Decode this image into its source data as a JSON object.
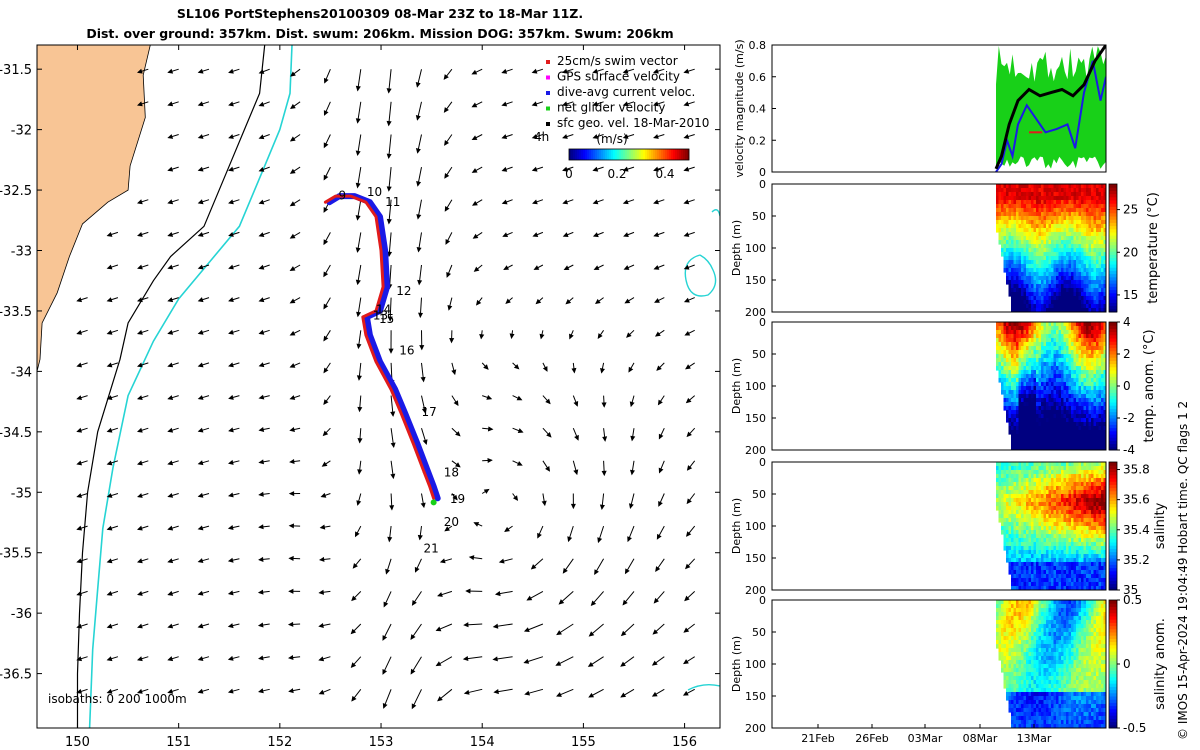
{
  "title": {
    "line1": "SL106 PortStephens20100309 08-Mar 23Z to 18-Mar 11Z.",
    "line2": "Dist. over ground: 357km. Dist. swum: 206km. Mission DOG: 357km. Swum: 206km"
  },
  "credit": "© IMOS 15-Apr-2024 19:04:49 Hobart time. QC flags 1  2",
  "colors": {
    "land": "#f8c595",
    "isobath200": "#000000",
    "isobath1000": "#26d4d4",
    "track_red": "#e11b1b",
    "track_blue": "#1a1ae6",
    "track_green": "#18d018",
    "glider_mag": "#000000"
  },
  "chart_data": [
    {
      "type": "map",
      "name": "map",
      "x_ticks": [
        150,
        151,
        152,
        153,
        154,
        155,
        156
      ],
      "y_ticks": [
        -31.5,
        -32,
        -32.5,
        -33,
        -33.5,
        -34,
        -34.5,
        -35,
        -35.5,
        -36,
        -36.5
      ],
      "xlim": [
        149.6,
        156.35
      ],
      "ylim": [
        -36.95,
        -31.3
      ],
      "legend": {
        "placement": "top-right",
        "entries": [
          "25cm/s swim vector",
          "GPS surface velocity",
          "dive-avg current veloc.",
          "net glider velocity",
          "sfc geo. vel. 18-Mar-2010"
        ],
        "extra_label": "4h"
      },
      "colorbar": {
        "label": "(m/s)",
        "ticks": [
          "0",
          "0.2",
          "0.4"
        ],
        "range": [
          0,
          0.5
        ]
      },
      "isobath_label": "isobaths: 0   200   1000m",
      "day_labels": [
        {
          "text": "9",
          "lon": 152.58,
          "lat": -32.58
        },
        {
          "text": "10",
          "lon": 152.86,
          "lat": -32.55
        },
        {
          "text": "11",
          "lon": 153.04,
          "lat": -32.63
        },
        {
          "text": "12",
          "lon": 153.15,
          "lat": -33.37
        },
        {
          "text": "14",
          "lon": 152.95,
          "lat": -33.52
        },
        {
          "text": "13",
          "lon": 152.92,
          "lat": -33.57
        },
        {
          "text": "15",
          "lon": 152.98,
          "lat": -33.6
        },
        {
          "text": "16",
          "lon": 153.18,
          "lat": -33.86
        },
        {
          "text": "17",
          "lon": 153.4,
          "lat": -34.37
        },
        {
          "text": "18",
          "lon": 153.62,
          "lat": -34.87
        },
        {
          "text": "19",
          "lon": 153.68,
          "lat": -35.09
        },
        {
          "text": "20",
          "lon": 153.62,
          "lat": -35.28
        },
        {
          "text": "21",
          "lon": 153.42,
          "lat": -35.5
        }
      ],
      "track": [
        [
          152.45,
          -32.6
        ],
        [
          152.55,
          -32.55
        ],
        [
          152.7,
          -32.55
        ],
        [
          152.85,
          -32.6
        ],
        [
          152.95,
          -32.72
        ],
        [
          153.0,
          -33.0
        ],
        [
          153.02,
          -33.3
        ],
        [
          152.95,
          -33.5
        ],
        [
          152.82,
          -33.55
        ],
        [
          152.85,
          -33.7
        ],
        [
          152.95,
          -33.92
        ],
        [
          153.1,
          -34.15
        ],
        [
          153.2,
          -34.35
        ],
        [
          153.32,
          -34.6
        ],
        [
          153.42,
          -34.82
        ],
        [
          153.48,
          -34.95
        ],
        [
          153.52,
          -35.05
        ]
      ],
      "coastline": [
        [
          150.27,
          -31.3
        ],
        [
          150.72,
          -31.3
        ],
        [
          150.65,
          -31.55
        ],
        [
          150.67,
          -31.9
        ],
        [
          150.52,
          -32.3
        ],
        [
          150.5,
          -32.5
        ],
        [
          150.3,
          -32.6
        ],
        [
          150.05,
          -32.78
        ],
        [
          149.92,
          -33.05
        ],
        [
          149.8,
          -33.35
        ],
        [
          149.65,
          -33.6
        ],
        [
          149.63,
          -33.9
        ],
        [
          149.6,
          -34.0
        ]
      ],
      "isobath200": [
        [
          151.85,
          -31.3
        ],
        [
          151.8,
          -31.7
        ],
        [
          151.65,
          -32.0
        ],
        [
          151.55,
          -32.2
        ],
        [
          151.25,
          -32.8
        ],
        [
          150.92,
          -33.05
        ],
        [
          150.75,
          -33.25
        ],
        [
          150.5,
          -33.6
        ],
        [
          150.42,
          -33.9
        ],
        [
          150.2,
          -34.5
        ],
        [
          150.1,
          -35.0
        ],
        [
          150.05,
          -35.5
        ],
        [
          150.02,
          -36.0
        ],
        [
          150.0,
          -36.5
        ],
        [
          150.0,
          -36.95
        ]
      ],
      "isobath1000": [
        [
          152.12,
          -31.3
        ],
        [
          152.1,
          -31.7
        ],
        [
          152.0,
          -32.0
        ],
        [
          151.85,
          -32.3
        ],
        [
          151.6,
          -32.8
        ],
        [
          151.3,
          -33.1
        ],
        [
          151.0,
          -33.4
        ],
        [
          150.75,
          -33.75
        ],
        [
          150.5,
          -34.2
        ],
        [
          150.35,
          -34.8
        ],
        [
          150.25,
          -35.3
        ],
        [
          150.2,
          -35.8
        ],
        [
          150.15,
          -36.3
        ],
        [
          150.12,
          -36.95
        ]
      ]
    },
    {
      "type": "line",
      "name": "velocity",
      "ylabel": "velocity magnitude (m/s)",
      "ylim": [
        0,
        0.8
      ],
      "y_ticks": [
        0,
        0.2,
        0.4,
        0.6,
        0.8
      ],
      "series_glider": [
        [
          0,
          0.02
        ],
        [
          0.05,
          0.1
        ],
        [
          0.12,
          0.3
        ],
        [
          0.2,
          0.45
        ],
        [
          0.3,
          0.52
        ],
        [
          0.4,
          0.48
        ],
        [
          0.5,
          0.5
        ],
        [
          0.6,
          0.52
        ],
        [
          0.7,
          0.48
        ],
        [
          0.8,
          0.55
        ],
        [
          0.9,
          0.7
        ],
        [
          1.0,
          0.8
        ]
      ],
      "series_dive": [
        [
          0,
          0.0
        ],
        [
          0.05,
          0.05
        ],
        [
          0.1,
          0.2
        ],
        [
          0.15,
          0.1
        ],
        [
          0.2,
          0.3
        ],
        [
          0.28,
          0.42
        ],
        [
          0.35,
          0.35
        ],
        [
          0.45,
          0.25
        ],
        [
          0.55,
          0.27
        ],
        [
          0.65,
          0.3
        ],
        [
          0.72,
          0.15
        ],
        [
          0.8,
          0.5
        ],
        [
          0.88,
          0.7
        ],
        [
          0.95,
          0.45
        ],
        [
          1.0,
          0.6
        ]
      ]
    },
    {
      "type": "heatmap",
      "name": "temperature",
      "ylabel": "Depth (m)",
      "y_ticks": [
        0,
        50,
        100,
        150,
        200
      ],
      "colorbar_label": "temperature (°C)",
      "colorbar_ticks": [
        15,
        20,
        25
      ],
      "colorbar_range": [
        13,
        28
      ]
    },
    {
      "type": "heatmap",
      "name": "temp-anomaly",
      "ylabel": "Depth (m)",
      "y_ticks": [
        0,
        50,
        100,
        150,
        200
      ],
      "colorbar_label": "temp. anom. (°C)",
      "colorbar_ticks": [
        -4,
        -2,
        0,
        2,
        4
      ],
      "colorbar_range": [
        -4,
        4
      ]
    },
    {
      "type": "heatmap",
      "name": "salinity",
      "ylabel": "Depth (m)",
      "y_ticks": [
        0,
        50,
        100,
        150,
        200
      ],
      "colorbar_label": "salinity",
      "colorbar_ticks": [
        35,
        35.2,
        35.4,
        35.6,
        35.8
      ],
      "colorbar_range": [
        35,
        35.85
      ]
    },
    {
      "type": "heatmap",
      "name": "salinity-anomaly",
      "ylabel": "Depth (m)",
      "y_ticks": [
        0,
        50,
        100,
        150,
        200
      ],
      "colorbar_label": "salinity anom.",
      "colorbar_ticks": [
        -0.5,
        0,
        0.5
      ],
      "colorbar_range": [
        -0.5,
        0.5
      ],
      "x_tick_labels": [
        "21Feb",
        "26Feb",
        "03Mar",
        "08Mar",
        "13Mar"
      ]
    }
  ]
}
